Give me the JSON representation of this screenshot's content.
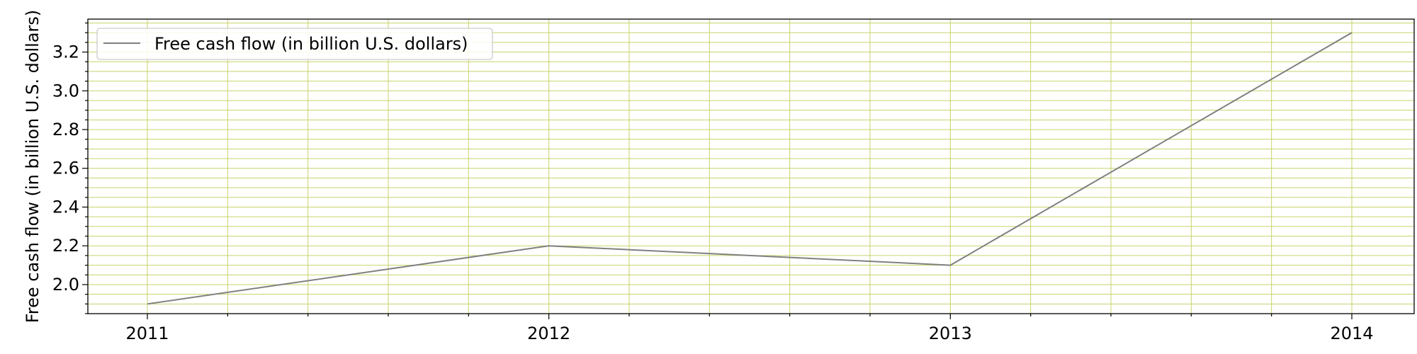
{
  "chart_data": {
    "type": "line",
    "x": [
      "2011",
      "2012",
      "2013",
      "2014"
    ],
    "series": [
      {
        "name": "Free cash flow (in billion U.S. dollars)",
        "values": [
          1.9,
          2.2,
          2.1,
          3.3
        ]
      }
    ],
    "xlabel": "",
    "ylabel": "Free cash flow (in billion U.S. dollars)",
    "ylim": [
      1.85,
      3.37
    ],
    "yticks": [
      2.0,
      2.2,
      2.4,
      2.6,
      2.8,
      3.0,
      3.2
    ],
    "ytick_labels": [
      "2.0",
      "2.2",
      "2.4",
      "2.6",
      "2.8",
      "3.0",
      "3.2"
    ],
    "grid": true,
    "minor_grid": true,
    "legend_position": "upper-left",
    "colors": {
      "line": "#808080",
      "grid": "#c9d36a",
      "axes": "#000000"
    }
  }
}
